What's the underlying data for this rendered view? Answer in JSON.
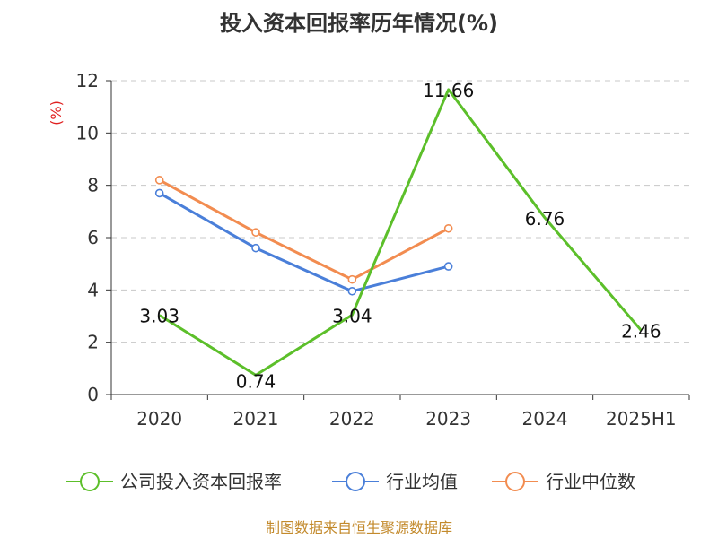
{
  "page": {
    "title": "投入资本回报率历年情况(%)",
    "source": "制图数据来自恒生聚源数据库"
  },
  "chart_data": {
    "type": "line",
    "title": "投入资本回报率历年情况(%)",
    "ylabel": "(%)",
    "xlabel": "",
    "categories": [
      "2020",
      "2021",
      "2022",
      "2023",
      "2024",
      "2025H1"
    ],
    "ylim": [
      0,
      12
    ],
    "yticks": [
      0,
      2,
      4,
      6,
      8,
      10,
      12
    ],
    "grid": true,
    "legend_position": "bottom",
    "series": [
      {
        "name": "公司投入资本回报率",
        "color": "#5cbf2a",
        "values": [
          3.03,
          0.74,
          3.04,
          11.66,
          6.76,
          2.46
        ],
        "value_labels": [
          "3.03",
          "0.74",
          "3.04",
          "11.66",
          "6.76",
          "2.46"
        ],
        "show_labels": true,
        "show_markers": false
      },
      {
        "name": "行业均值",
        "color": "#4a7fd9",
        "values": [
          7.7,
          5.6,
          3.95,
          4.9,
          null,
          null
        ],
        "show_labels": false,
        "show_markers": true
      },
      {
        "name": "行业中位数",
        "color": "#f28c50",
        "values": [
          8.2,
          6.2,
          4.4,
          6.35,
          null,
          null
        ],
        "show_labels": false,
        "show_markers": true
      }
    ]
  }
}
